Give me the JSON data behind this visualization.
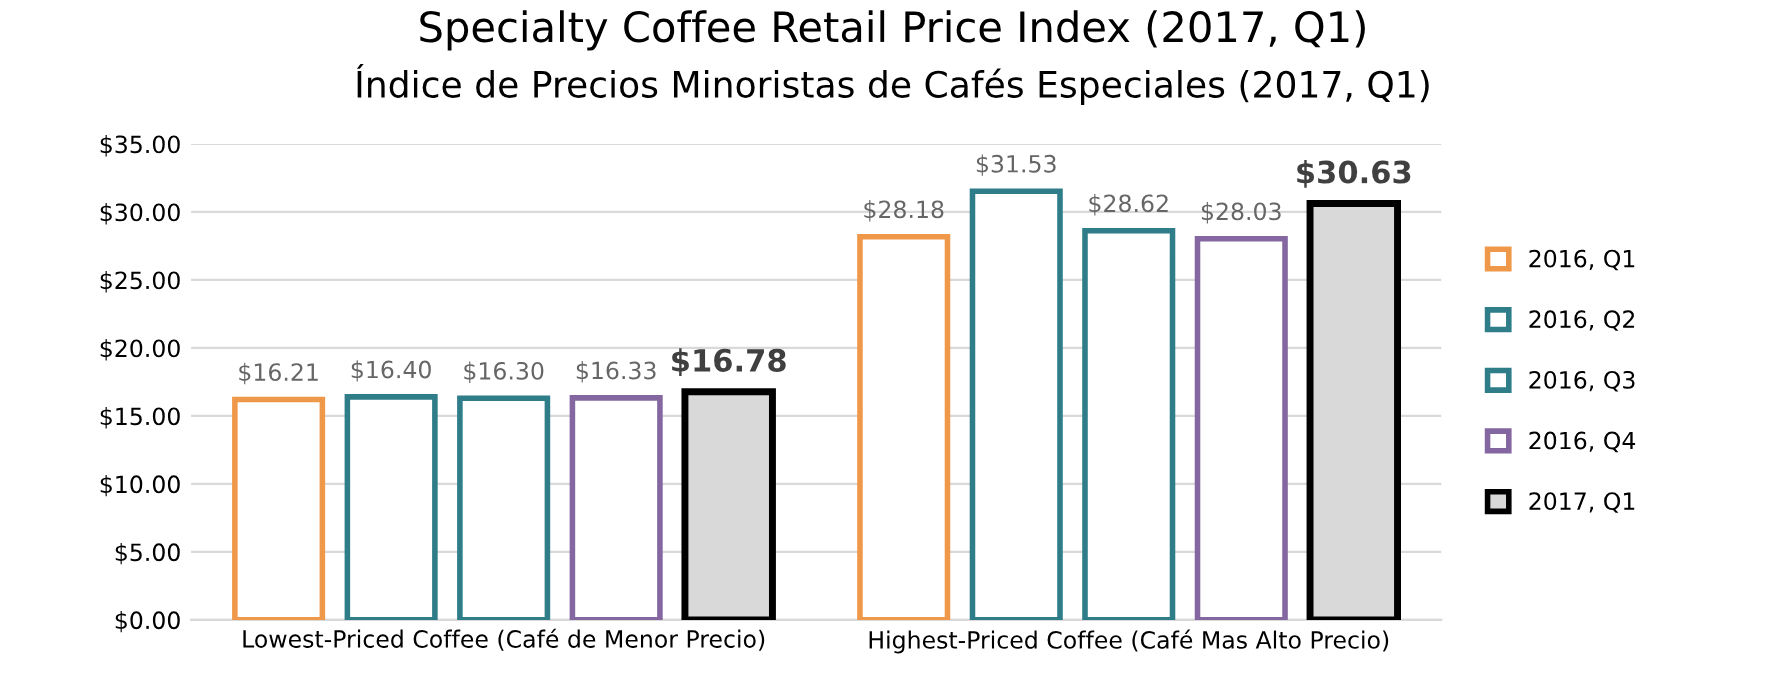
{
  "chart_data": {
    "type": "bar",
    "title": "Specialty Coffee Retail Price Index (2017, Q1)",
    "subtitle": "Índice de Precios Minoristas de Cafés Especiales (2017, Q1)",
    "categories": [
      "Lowest-Priced Coffee (Café de Menor Precio)",
      "Highest-Priced Coffee (Café Mas Alto Precio)"
    ],
    "series": [
      {
        "name": "2016, Q1",
        "color": "#f0984a",
        "values": [
          16.21,
          28.18
        ],
        "value_labels": [
          "$16.21",
          "$28.18"
        ]
      },
      {
        "name": "2016, Q2",
        "color": "#2e7d89",
        "values": [
          16.4,
          31.53
        ],
        "value_labels": [
          "$16.40",
          "$31.53"
        ]
      },
      {
        "name": "2016, Q3",
        "color": "#2e7d89",
        "values": [
          16.3,
          28.62
        ],
        "value_labels": [
          "$16.30",
          "$28.62"
        ]
      },
      {
        "name": "2016, Q4",
        "color": "#8466a0",
        "values": [
          16.33,
          28.03
        ],
        "value_labels": [
          "$16.33",
          "$28.03"
        ]
      },
      {
        "name": "2017, Q1",
        "color": "#000000",
        "values": [
          16.78,
          30.63
        ],
        "value_labels": [
          "$16.78",
          "$30.63"
        ]
      }
    ],
    "ylim": [
      0,
      35
    ],
    "yticks": [
      {
        "value": 0,
        "label": "$0.00"
      },
      {
        "value": 5,
        "label": "$5.00"
      },
      {
        "value": 10,
        "label": "$10.00"
      },
      {
        "value": 15,
        "label": "$15.00"
      },
      {
        "value": 20,
        "label": "$20.00"
      },
      {
        "value": 25,
        "label": "$25.00"
      },
      {
        "value": 30,
        "label": "$30.00"
      },
      {
        "value": 35,
        "label": "$35.00"
      }
    ],
    "grid": "y",
    "legend": "right"
  }
}
